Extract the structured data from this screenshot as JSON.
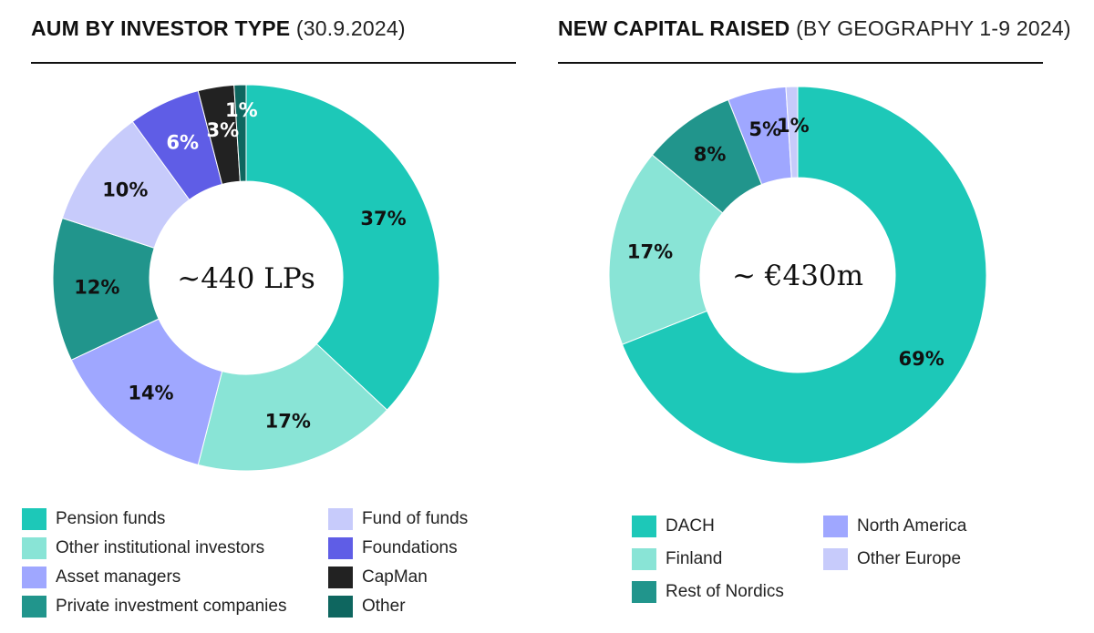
{
  "colors": {
    "pension_funds": "#1dc8b8",
    "other_institutional": "#89e4d6",
    "asset_managers": "#9fa7ff",
    "private_investment": "#21958c",
    "fund_of_funds": "#c7cbfb",
    "foundations": "#5f5de6",
    "capman": "#222222",
    "other": "#0e665f",
    "dach": "#1dc8b8",
    "finland": "#89e4d6",
    "rest_of_nordics": "#21958c",
    "north_america": "#9fa7ff",
    "other_europe": "#c7cbfb"
  },
  "chart_data": [
    {
      "type": "pie",
      "title": "AUM BY INVESTOR TYPE",
      "subtitle": "(30.9.2024)",
      "center_label": "~440 LPs",
      "slices": [
        {
          "name": "Pension funds",
          "value": 37,
          "label": "37%",
          "color_key": "pension_funds"
        },
        {
          "name": "Other institutional investors",
          "value": 17,
          "label": "17%",
          "color_key": "other_institutional"
        },
        {
          "name": "Asset managers",
          "value": 14,
          "label": "14%",
          "color_key": "asset_managers"
        },
        {
          "name": "Private investment companies",
          "value": 12,
          "label": "12%",
          "color_key": "private_investment"
        },
        {
          "name": "Fund of funds",
          "value": 10,
          "label": "10%",
          "color_key": "fund_of_funds"
        },
        {
          "name": "Foundations",
          "value": 6,
          "label": "6%",
          "color_key": "foundations"
        },
        {
          "name": "CapMan",
          "value": 3,
          "label": "3%",
          "color_key": "capman"
        },
        {
          "name": "Other",
          "value": 1,
          "label": "1%",
          "color_key": "other"
        }
      ],
      "legend": [
        {
          "label": "Pension funds",
          "color_key": "pension_funds"
        },
        {
          "label": "Other institutional investors",
          "color_key": "other_institutional"
        },
        {
          "label": "Asset managers",
          "color_key": "asset_managers"
        },
        {
          "label": "Private investment companies",
          "color_key": "private_investment"
        },
        {
          "label": "Fund of funds",
          "color_key": "fund_of_funds"
        },
        {
          "label": "Foundations",
          "color_key": "foundations"
        },
        {
          "label": "CapMan",
          "color_key": "capman"
        },
        {
          "label": "Other",
          "color_key": "other"
        }
      ]
    },
    {
      "type": "pie",
      "title": "NEW CAPITAL RAISED",
      "subtitle": "(BY GEOGRAPHY 1-9 2024)",
      "center_label": "~ €430m",
      "slices": [
        {
          "name": "DACH",
          "value": 69,
          "label": "69%",
          "color_key": "dach"
        },
        {
          "name": "Finland",
          "value": 17,
          "label": "17%",
          "color_key": "finland"
        },
        {
          "name": "Rest of Nordics",
          "value": 8,
          "label": "8%",
          "color_key": "rest_of_nordics"
        },
        {
          "name": "North America",
          "value": 5,
          "label": "5%",
          "color_key": "north_america"
        },
        {
          "name": "Other Europe",
          "value": 1,
          "label": "1%",
          "color_key": "other_europe"
        }
      ],
      "legend": [
        {
          "label": "DACH",
          "color_key": "dach"
        },
        {
          "label": "Finland",
          "color_key": "finland"
        },
        {
          "label": "Rest of Nordics",
          "color_key": "rest_of_nordics"
        },
        {
          "label": "North America",
          "color_key": "north_america"
        },
        {
          "label": "Other Europe",
          "color_key": "other_europe"
        }
      ]
    }
  ]
}
